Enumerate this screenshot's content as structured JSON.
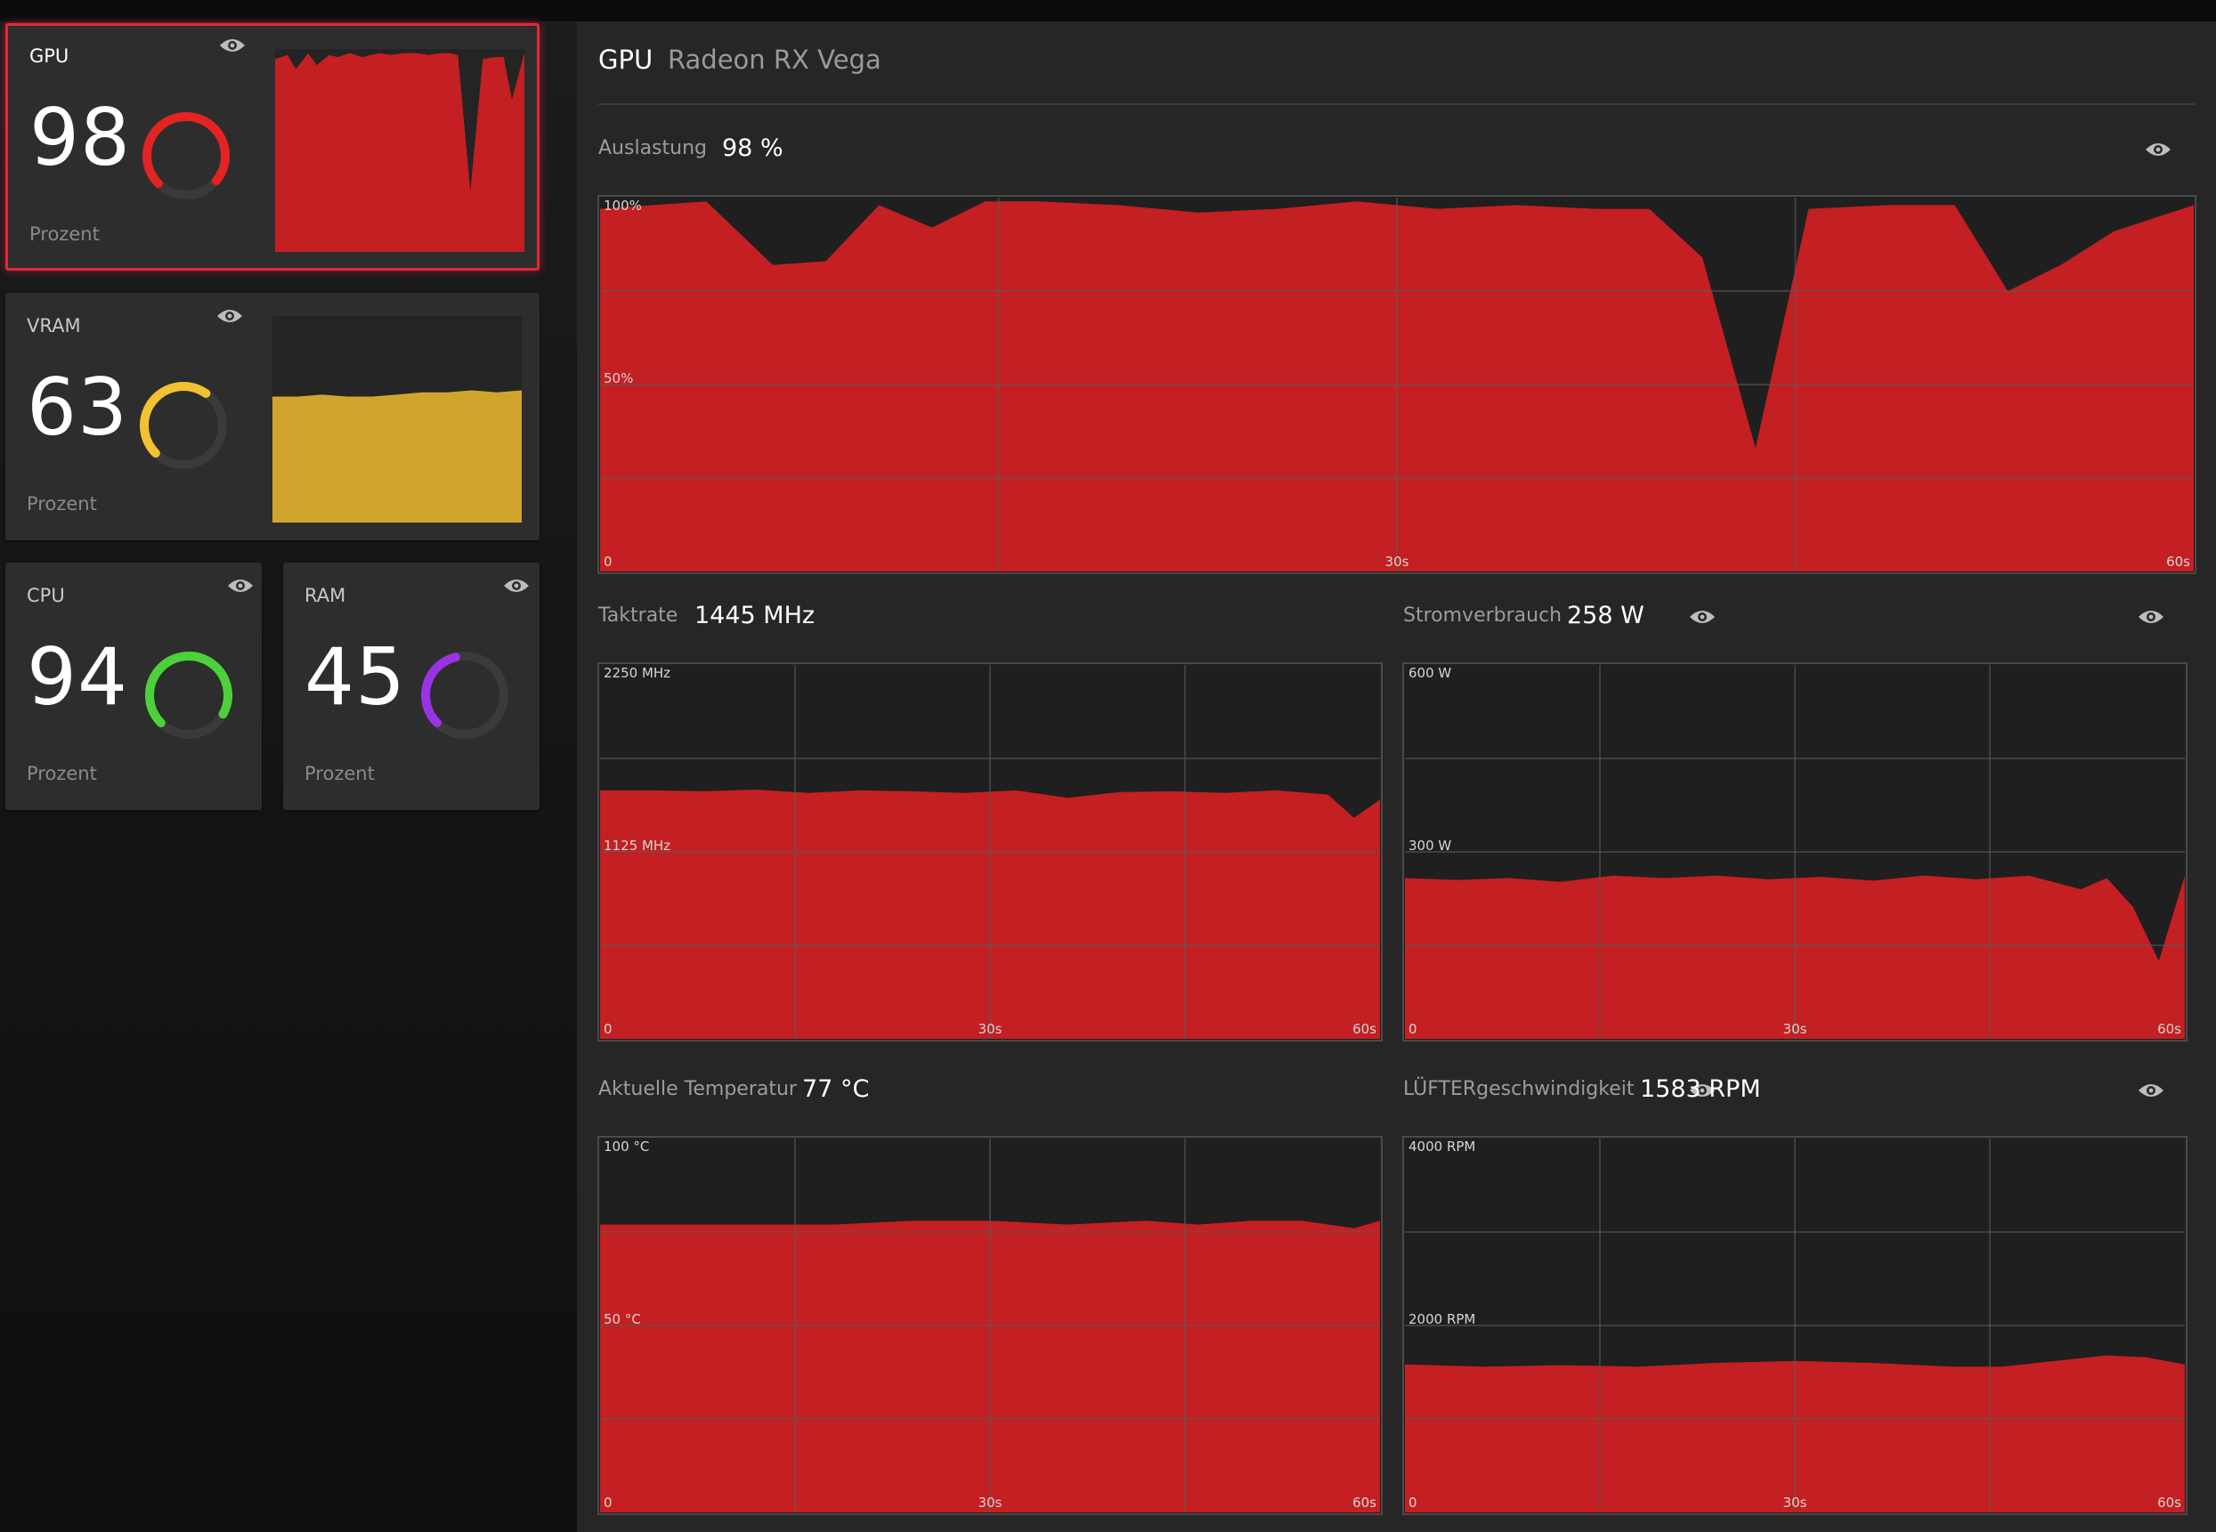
{
  "colors": {
    "gpu": "#c41f22",
    "vram": "#d1a52d",
    "cpu_ring": "#4cd13a",
    "ram_ring": "#9a33e6",
    "gpu_ring": "#e52323",
    "vram_ring": "#f2c233",
    "selected_border": "#e0283a"
  },
  "sidebar": {
    "cards": [
      {
        "key": "gpu",
        "title": "GPU",
        "value": "98",
        "unit": "Prozent",
        "eye_icon": "eye-icon"
      },
      {
        "key": "vram",
        "title": "VRAM",
        "value": "63",
        "unit": "Prozent",
        "eye_icon": "eye-icon"
      },
      {
        "key": "cpu",
        "title": "CPU",
        "value": "94",
        "unit": "Prozent",
        "eye_icon": "eye-icon"
      },
      {
        "key": "ram",
        "title": "RAM",
        "value": "45",
        "unit": "Prozent",
        "eye_icon": "eye-icon"
      }
    ]
  },
  "panel": {
    "title": "GPU",
    "subtitle": "Radeon RX Vega",
    "metrics": {
      "auslastung": {
        "label": "Auslastung",
        "value": "98 %"
      },
      "taktrate": {
        "label": "Taktrate",
        "value": "1445 MHz"
      },
      "strom": {
        "label": "Stromverbrauch",
        "value": "258 W"
      },
      "temp": {
        "label": "Aktuelle Temperatur",
        "value": "77 °C"
      },
      "fan": {
        "label": "LÜFTERgeschwindigkeit",
        "value": "1583 RPM"
      }
    }
  },
  "chart_data": [
    {
      "id": "sidebar-gpu",
      "type": "area",
      "y_range": [
        0,
        100
      ],
      "x": [
        0,
        3,
        5,
        8,
        10,
        13,
        15,
        18,
        21,
        25,
        28,
        31,
        34,
        37,
        40,
        42,
        44,
        47,
        50,
        53,
        55,
        57,
        60
      ],
      "values": [
        95,
        97,
        90,
        98,
        92,
        97,
        96,
        98,
        96,
        98,
        97,
        98,
        98,
        97,
        98,
        98,
        97,
        30,
        95,
        96,
        96,
        75,
        98
      ]
    },
    {
      "id": "sidebar-vram",
      "type": "area",
      "y_range": [
        0,
        100
      ],
      "x": [
        0,
        6,
        12,
        18,
        24,
        30,
        36,
        42,
        48,
        54,
        60
      ],
      "values": [
        61,
        61,
        62,
        61,
        61,
        62,
        63,
        63,
        64,
        63,
        64
      ]
    },
    {
      "id": "auslastung",
      "type": "area",
      "y_labels": [
        "100%",
        "50%",
        "0"
      ],
      "x_labels": [
        "30s",
        "60s"
      ],
      "y_range": [
        0,
        100
      ],
      "x": [
        0,
        2,
        4,
        6.5,
        8.5,
        10.5,
        12.5,
        14.5,
        16.5,
        19.5,
        22.5,
        25.5,
        28.5,
        31.5,
        34.5,
        37.5,
        39.5,
        41.5,
        43.5,
        45.5,
        48.5,
        51,
        53,
        55,
        57,
        60
      ],
      "values": [
        97,
        98,
        99,
        82,
        83,
        98,
        92,
        99,
        99,
        98,
        96,
        97,
        99,
        97,
        98,
        97,
        97,
        84,
        33,
        97,
        98,
        98,
        75,
        82,
        91,
        98
      ]
    },
    {
      "id": "taktrate",
      "type": "area",
      "y_labels": [
        "2250 MHz",
        "1125 MHz",
        "0"
      ],
      "x_labels": [
        "30s",
        "60s"
      ],
      "y_range": [
        0,
        2250
      ],
      "x": [
        0,
        4,
        8,
        12,
        16,
        20,
        24,
        28,
        32,
        36,
        40,
        44,
        48,
        52,
        56,
        58,
        60
      ],
      "values": [
        1495,
        1495,
        1490,
        1500,
        1480,
        1495,
        1490,
        1480,
        1495,
        1450,
        1485,
        1490,
        1480,
        1495,
        1470,
        1330,
        1440
      ]
    },
    {
      "id": "strom",
      "type": "area",
      "y_labels": [
        "600 W",
        "300 W",
        "0"
      ],
      "x_labels": [
        "30s",
        "60s"
      ],
      "y_range": [
        0,
        600
      ],
      "x": [
        0,
        4,
        8,
        12,
        16,
        20,
        24,
        28,
        32,
        36,
        40,
        44,
        48,
        52,
        54,
        56,
        58,
        60
      ],
      "values": [
        258,
        255,
        258,
        252,
        262,
        258,
        262,
        256,
        260,
        254,
        262,
        256,
        262,
        240,
        258,
        212,
        125,
        262
      ]
    },
    {
      "id": "temp",
      "type": "area",
      "y_labels": [
        "100 °C",
        "50 °C",
        "0"
      ],
      "x_labels": [
        "30s",
        "60s"
      ],
      "y_range": [
        0,
        100
      ],
      "x": [
        0,
        6,
        12,
        18,
        24,
        30,
        36,
        42,
        46,
        50,
        54,
        58,
        60
      ],
      "values": [
        77,
        77,
        77,
        77,
        78,
        78,
        77,
        78,
        77,
        78,
        78,
        76,
        78
      ]
    },
    {
      "id": "fan",
      "type": "area",
      "y_labels": [
        "4000 RPM",
        "2000 RPM",
        "0"
      ],
      "x_labels": [
        "30s",
        "60s"
      ],
      "y_range": [
        0,
        4000
      ],
      "x": [
        0,
        6,
        12,
        18,
        24,
        30,
        36,
        42,
        46,
        50,
        54,
        57,
        60
      ],
      "values": [
        1583,
        1560,
        1575,
        1560,
        1600,
        1620,
        1600,
        1560,
        1560,
        1620,
        1680,
        1660,
        1583
      ]
    }
  ]
}
